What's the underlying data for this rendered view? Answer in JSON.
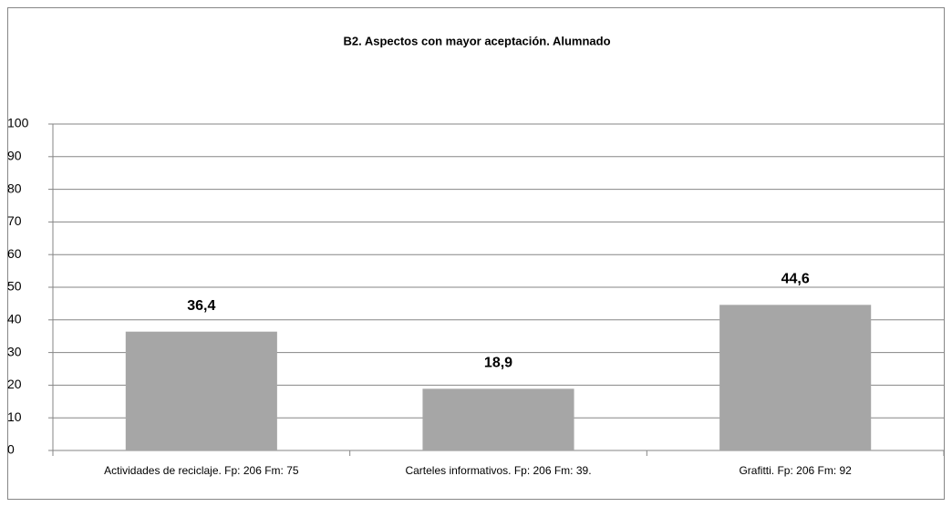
{
  "chart_data": {
    "type": "bar",
    "title": "B2. Aspectos con mayor aceptación. Alumnado",
    "categories": [
      "Actividades de reciclaje. Fp: 206 Fm: 75",
      "Carteles informativos. Fp: 206 Fm: 39.",
      "Grafitti. Fp: 206 Fm: 92"
    ],
    "values": [
      36.4,
      18.9,
      44.6
    ],
    "value_labels": [
      "36,4",
      "18,9",
      "44,6"
    ],
    "color": "#a6a6a6",
    "ylim": [
      0,
      100
    ],
    "yticks": [
      0,
      10,
      20,
      30,
      40,
      50,
      60,
      70,
      80,
      90,
      100
    ],
    "grid": true
  }
}
